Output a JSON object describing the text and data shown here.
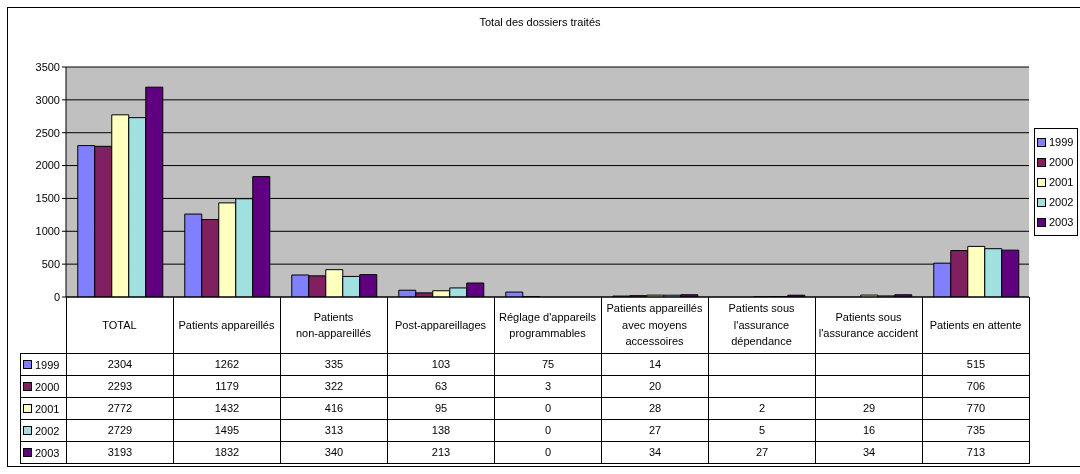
{
  "chart_data": {
    "type": "bar",
    "title": "Total des dossiers traités",
    "categories": [
      "TOTAL",
      "Patients appareillés",
      "Patients non-appareillés",
      "Post-appareillages",
      "Réglage d'appareils programmables",
      "Patients appareillés avec moyens accessoires",
      "Patients sous l'assurance dépendance",
      "Patients sous l'assurance accident",
      "Patients en attente"
    ],
    "series": [
      {
        "name": "1999",
        "color": "#8080ff",
        "values": [
          2304,
          1262,
          335,
          103,
          75,
          14,
          null,
          null,
          515
        ]
      },
      {
        "name": "2000",
        "color": "#802060",
        "values": [
          2293,
          1179,
          322,
          63,
          3,
          20,
          null,
          null,
          706
        ]
      },
      {
        "name": "2001",
        "color": "#ffffc0",
        "values": [
          2772,
          1432,
          416,
          95,
          0,
          28,
          2,
          29,
          770
        ]
      },
      {
        "name": "2002",
        "color": "#a0e0e0",
        "values": [
          2729,
          1495,
          313,
          138,
          0,
          27,
          5,
          16,
          735
        ]
      },
      {
        "name": "2003",
        "color": "#600080",
        "values": [
          3193,
          1832,
          340,
          213,
          0,
          34,
          27,
          34,
          713
        ]
      }
    ],
    "ylim": [
      0,
      3500
    ],
    "yticks": [
      0,
      500,
      1000,
      1500,
      2000,
      2500,
      3000,
      3500
    ],
    "grid": "y",
    "legend": "right",
    "data_labels": true
  }
}
